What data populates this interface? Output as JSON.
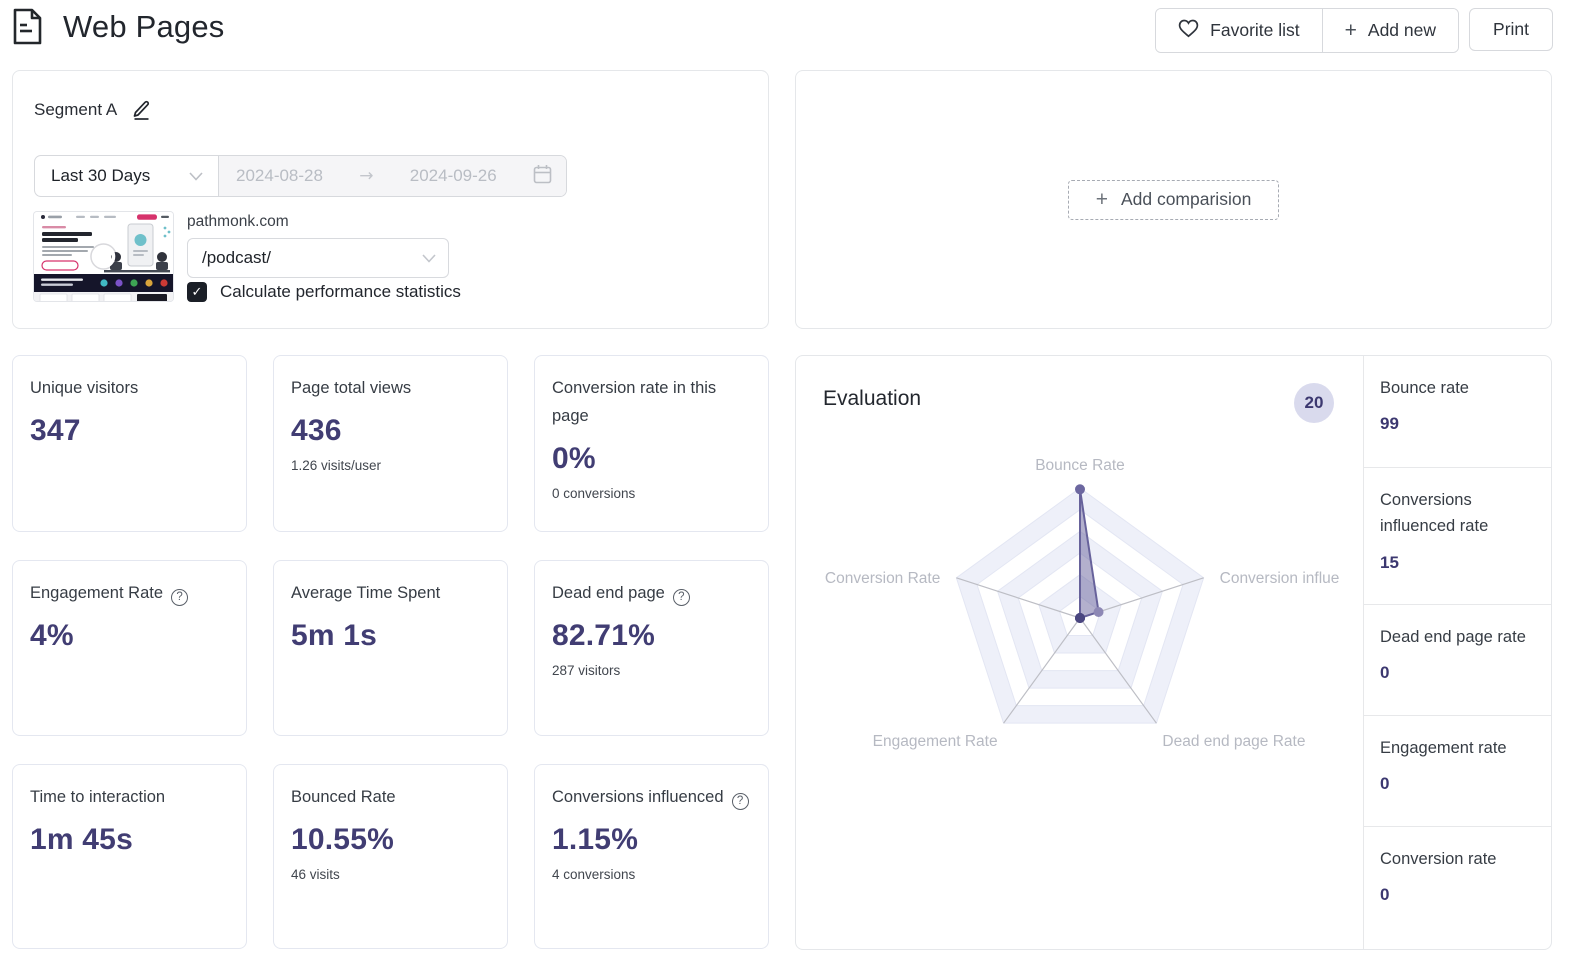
{
  "header": {
    "title": "Web Pages",
    "favorite_button": "Favorite list",
    "add_new_button": "Add new",
    "print_button": "Print"
  },
  "icons": {
    "plus": "+",
    "arrow_right": "→",
    "help": "?",
    "check": "✓"
  },
  "segment": {
    "name": "Segment A",
    "date_preset": "Last 30 Days",
    "date_start": "2024-08-28",
    "date_end": "2024-09-26",
    "site": "pathmonk.com",
    "page": "/podcast/",
    "checkbox_label": "Calculate performance statistics",
    "checkbox_checked": true
  },
  "comparison": {
    "button_label": "Add comparision"
  },
  "metrics": [
    {
      "label": "Unique visitors",
      "value": "347"
    },
    {
      "label": "Page total views",
      "value": "436",
      "sub": "1.26 visits/user"
    },
    {
      "label": "Conversion rate in this page",
      "value": "0%",
      "sub": "0 conversions"
    },
    {
      "label": "Engagement Rate",
      "value": "4%",
      "help": true
    },
    {
      "label": "Average Time Spent",
      "value": "5m 1s"
    },
    {
      "label": "Dead end page",
      "value": "82.71%",
      "sub": "287 visitors",
      "help": true
    },
    {
      "label": "Time to interaction",
      "value": "1m 45s"
    },
    {
      "label": "Bounced Rate",
      "value": "10.55%",
      "sub": "46 visits"
    },
    {
      "label": "Conversions influenced",
      "value": "1.15%",
      "sub": "4 conversions",
      "help": true
    }
  ],
  "evaluation": {
    "title": "Evaluation",
    "score": "20",
    "side_stats": [
      {
        "label": "Bounce rate",
        "value": "99"
      },
      {
        "label": "Conversions influenced rate",
        "value": "15"
      },
      {
        "label": "Dead end page rate",
        "value": "0"
      },
      {
        "label": "Engagement rate",
        "value": "0"
      },
      {
        "label": "Conversion rate",
        "value": "0"
      }
    ]
  },
  "chart_data": {
    "type": "radar",
    "title": "Evaluation",
    "score": 20,
    "axes": [
      "Bounce Rate",
      "Conversion influe",
      "Dead end page Rate",
      "Engagement Rate",
      "Conversion Rate"
    ],
    "values": [
      99,
      15,
      0,
      0,
      0
    ],
    "max": 100,
    "rings": 6,
    "fill_color": "rgba(103,98,155,0.5)",
    "stroke_color": "#67629b",
    "ring_fill": "#eef0f9",
    "ring_line": "#e3e6f3",
    "spoke_color": "#bdbec5",
    "axis_label_color": "#b6b9c2"
  },
  "colors": {
    "accent_indigo": "#413d73",
    "badge_bg": "#d9daed",
    "badge_text": "#3c3870",
    "label_text": "#363c44",
    "muted_text": "#b9bdc4",
    "panel_border": "#e5e7ea"
  }
}
